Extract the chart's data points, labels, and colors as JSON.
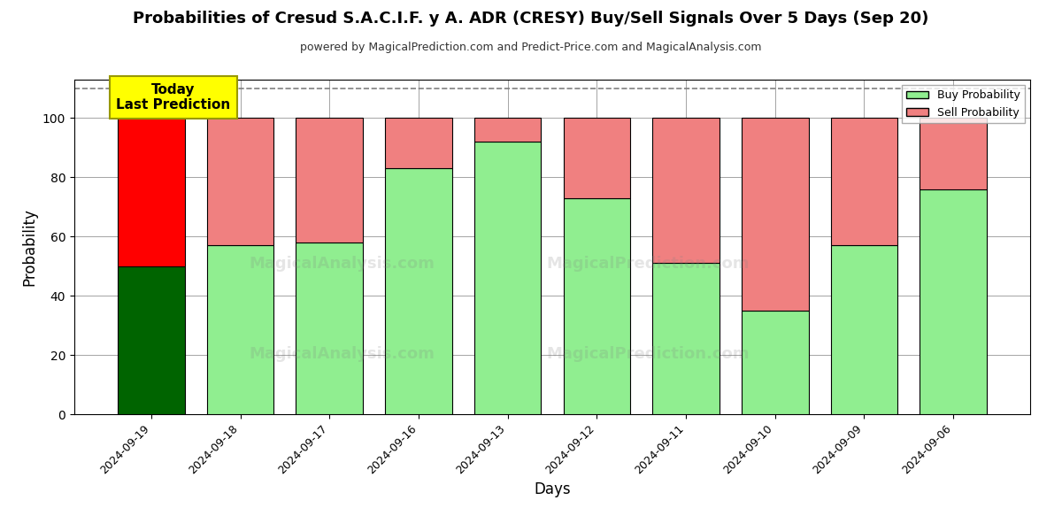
{
  "title": "Probabilities of Cresud S.A.C.I.F. y A. ADR (CRESY) Buy/Sell Signals Over 5 Days (Sep 20)",
  "subtitle": "powered by MagicalPrediction.com and Predict-Price.com and MagicalAnalysis.com",
  "xlabel": "Days",
  "ylabel": "Probability",
  "dates": [
    "2024-09-19",
    "2024-09-18",
    "2024-09-17",
    "2024-09-16",
    "2024-09-13",
    "2024-09-12",
    "2024-09-11",
    "2024-09-10",
    "2024-09-09",
    "2024-09-06"
  ],
  "buy_values": [
    50,
    57,
    58,
    83,
    92,
    73,
    51,
    35,
    57,
    76
  ],
  "sell_values": [
    50,
    43,
    42,
    17,
    8,
    27,
    49,
    65,
    43,
    24
  ],
  "today_buy_color": "#006400",
  "today_sell_color": "#FF0000",
  "buy_color": "#90EE90",
  "sell_color": "#F08080",
  "today_annotation_bg": "#FFFF00",
  "today_annotation_text": "Today\nLast Prediction",
  "ylim": [
    0,
    113
  ],
  "dashed_line_y": 110,
  "bar_edge_color": "#000000",
  "legend_buy_label": "Buy Probability",
  "legend_sell_label": "Sell Probability",
  "bar_width": 0.75,
  "title_fontsize": 13,
  "subtitle_fontsize": 9,
  "annotation_fontsize": 11
}
